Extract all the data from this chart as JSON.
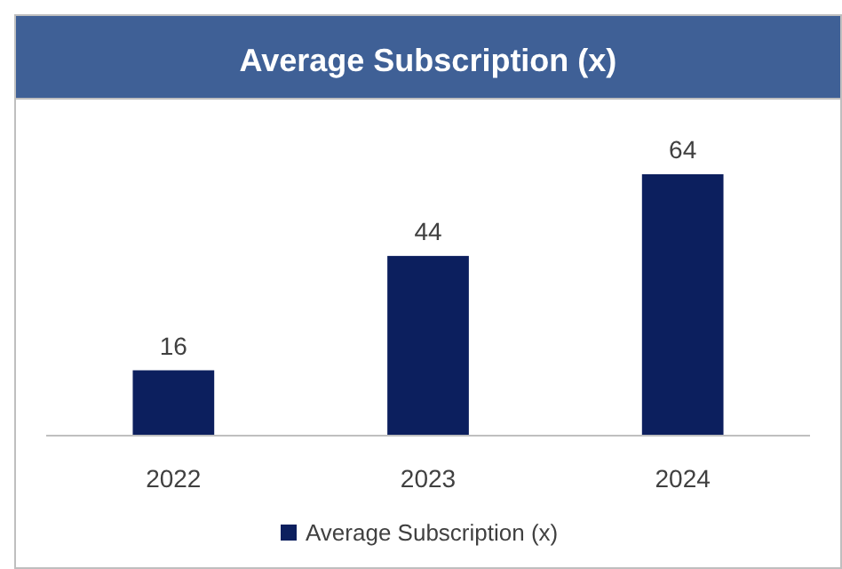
{
  "chart_data": {
    "type": "bar",
    "title": "Average Subscription (x)",
    "categories": [
      "2022",
      "2023",
      "2024"
    ],
    "series": [
      {
        "name": "Average Subscription (x)",
        "color": "#0c1f5e",
        "values": [
          16,
          44,
          64
        ]
      }
    ],
    "data_labels": true,
    "legend": "bottom"
  }
}
